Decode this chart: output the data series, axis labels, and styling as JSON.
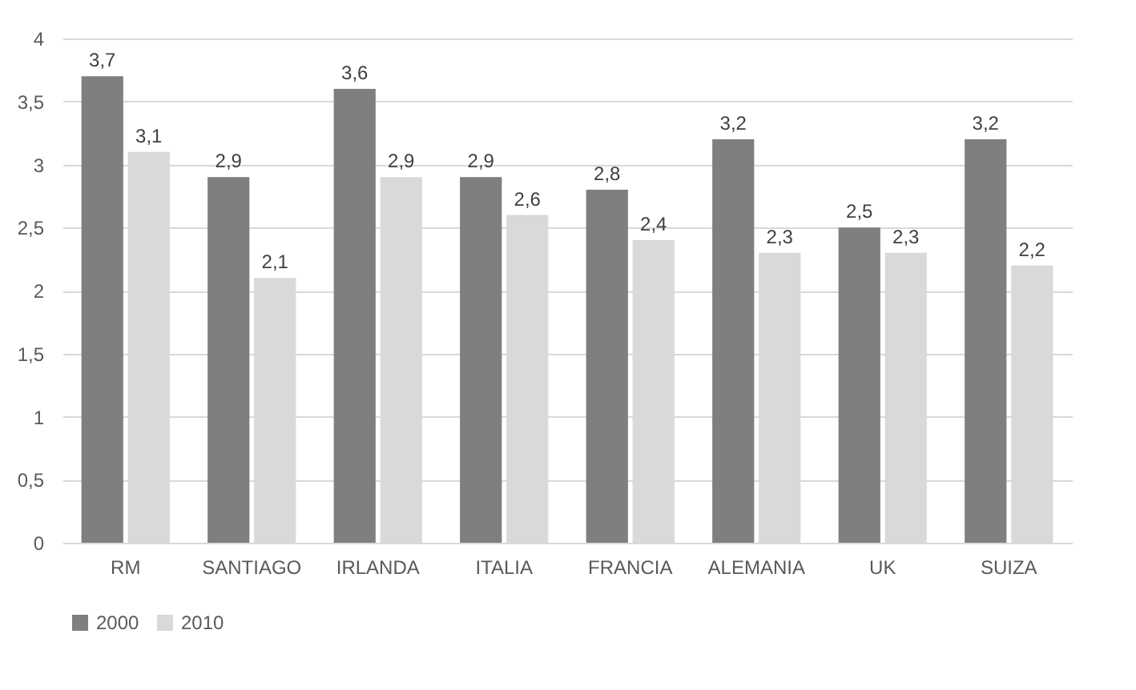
{
  "chart_data": {
    "type": "bar",
    "categories": [
      "RM",
      "SANTIAGO",
      "IRLANDA",
      "ITALIA",
      "FRANCIA",
      "ALEMANIA",
      "UK",
      "SUIZA"
    ],
    "series": [
      {
        "name": "2000",
        "color": "#7f7f7f",
        "values": [
          3.7,
          2.9,
          3.6,
          2.9,
          2.8,
          3.2,
          2.5,
          3.2
        ],
        "value_labels": [
          "3,7",
          "2,9",
          "3,6",
          "2,9",
          "2,8",
          "3,2",
          "2,5",
          "3,2"
        ]
      },
      {
        "name": "2010",
        "color": "#d9d9d9",
        "values": [
          3.1,
          2.1,
          2.9,
          2.6,
          2.4,
          2.3,
          2.3,
          2.2
        ],
        "value_labels": [
          "3,1",
          "2,1",
          "2,9",
          "2,6",
          "2,4",
          "2,3",
          "2,3",
          "2,2"
        ]
      }
    ],
    "ylim": [
      0,
      4
    ],
    "yticks": [
      0,
      {
        "value": 0.5,
        "label": "0,5"
      },
      1,
      {
        "value": 1.5,
        "label": "1,5"
      },
      2,
      {
        "value": 2.5,
        "label": "2,5"
      },
      3,
      {
        "value": 3.5,
        "label": "3,5"
      },
      4
    ],
    "grid": "y",
    "legend": "bottom"
  }
}
